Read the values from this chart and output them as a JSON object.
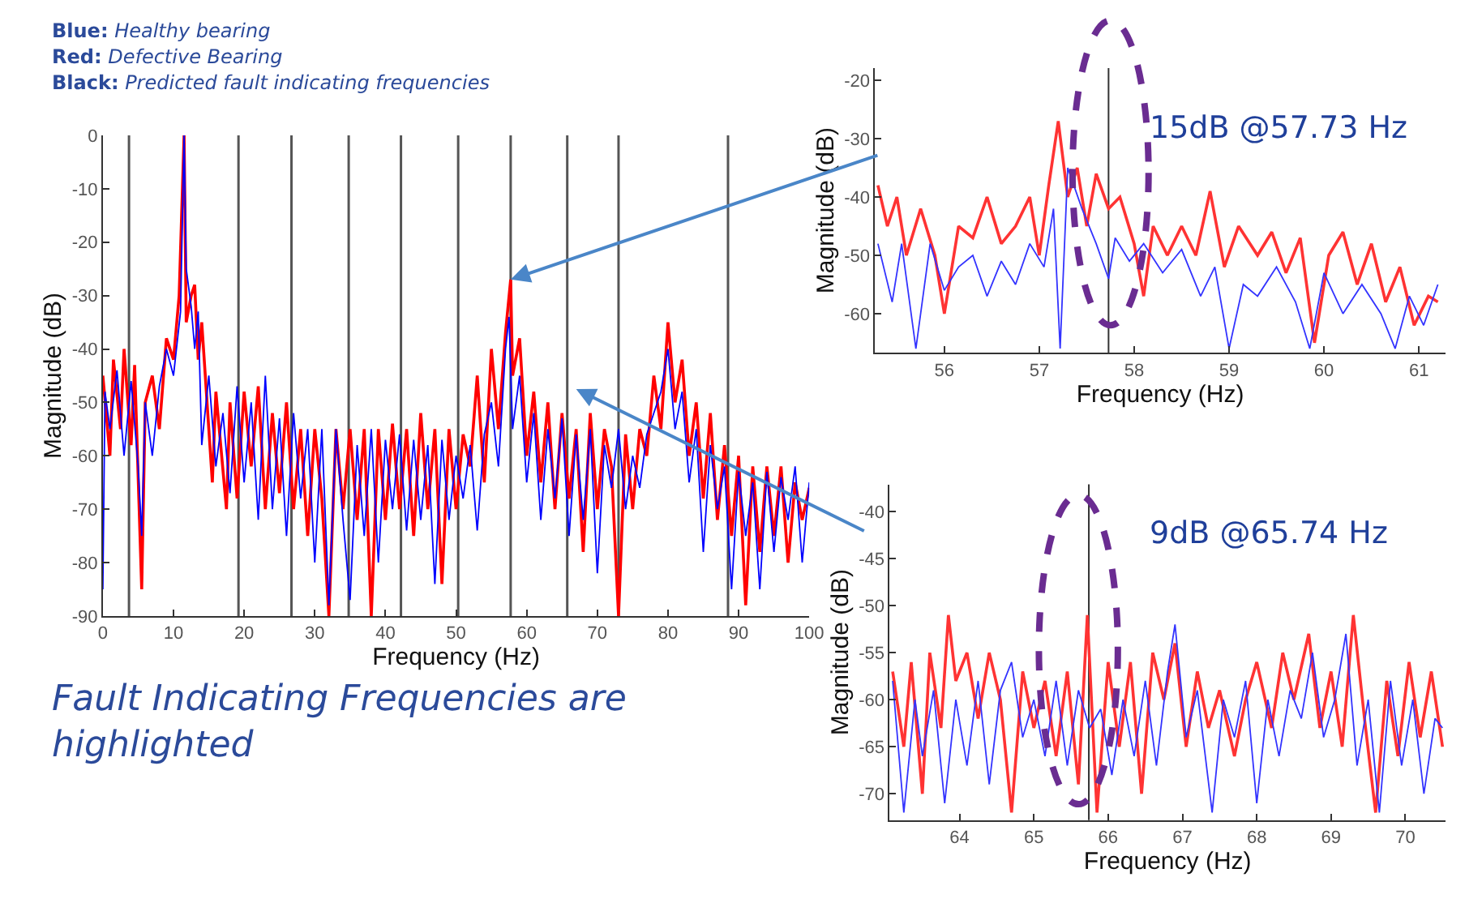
{
  "chart_data": [
    {
      "type": "line",
      "xlabel": "Frequency (Hz)",
      "ylabel": "Magnitude (dB)",
      "xlim": [
        0,
        100
      ],
      "ylim": [
        -90,
        0
      ],
      "xticks": [
        0,
        10,
        20,
        30,
        40,
        50,
        60,
        70,
        80,
        90,
        100
      ],
      "yticks": [
        -90,
        -80,
        -70,
        -60,
        -50,
        -40,
        -30,
        -20,
        -10,
        0
      ],
      "annotations": [
        "Blue: Healthy bearing",
        "Red: Defective Bearing",
        "Black: Predicted fault indicating frequencies",
        "Fault Indicating Frequencies are highlighted"
      ],
      "ref_lines": [
        {
          "axis": "x",
          "value": 3.7,
          "color": "#555555"
        },
        {
          "axis": "x",
          "value": 19.2,
          "color": "#555555"
        },
        {
          "axis": "x",
          "value": 26.7,
          "color": "#555555"
        },
        {
          "axis": "x",
          "value": 34.8,
          "color": "#555555"
        },
        {
          "axis": "x",
          "value": 42.2,
          "color": "#555555"
        },
        {
          "axis": "x",
          "value": 50.3,
          "color": "#555555"
        },
        {
          "axis": "x",
          "value": 57.73,
          "color": "#555555"
        },
        {
          "axis": "x",
          "value": 65.74,
          "color": "#555555"
        },
        {
          "axis": "x",
          "value": 73.0,
          "color": "#555555"
        },
        {
          "axis": "x",
          "value": 88.5,
          "color": "#555555"
        }
      ],
      "series": [
        {
          "color": "#ff0000",
          "x": [
            0,
            1,
            1.5,
            2.5,
            3,
            4,
            4.5,
            5.5,
            6,
            7,
            8,
            9,
            10,
            10.8,
            11.5,
            11.8,
            12.5,
            13,
            13.5,
            14,
            15,
            15.5,
            16,
            17.5,
            18,
            19,
            20,
            21,
            22,
            23,
            24,
            25,
            26,
            27,
            28,
            29,
            30,
            31,
            32,
            33,
            34,
            35,
            36,
            37,
            38,
            39,
            40,
            41,
            42,
            43,
            44,
            45,
            46,
            47,
            48,
            49,
            50,
            51,
            52,
            53,
            54,
            55,
            56,
            57,
            57.73,
            58,
            59,
            60,
            61,
            62,
            63,
            64,
            65,
            66,
            67,
            68,
            69,
            70,
            71,
            72,
            73,
            74,
            75,
            76,
            77,
            78,
            79,
            80,
            81,
            82,
            83,
            84,
            85,
            86,
            87,
            88,
            89,
            90,
            91,
            92,
            93,
            94,
            95,
            96,
            97,
            98,
            99,
            100
          ],
          "values": [
            -45,
            -60,
            -42,
            -55,
            -40,
            -58,
            -43,
            -85,
            -50,
            -45,
            -55,
            -38,
            -42,
            -30,
            0,
            -35,
            -30,
            -28,
            -42,
            -35,
            -55,
            -65,
            -48,
            -70,
            -50,
            -68,
            -48,
            -62,
            -47,
            -70,
            -52,
            -67,
            -50,
            -70,
            -55,
            -75,
            -55,
            -68,
            -90,
            -55,
            -70,
            -55,
            -72,
            -55,
            -90,
            -55,
            -72,
            -54,
            -70,
            -55,
            -75,
            -52,
            -70,
            -55,
            -84,
            -55,
            -70,
            -56,
            -62,
            -45,
            -65,
            -40,
            -55,
            -37,
            -27,
            -45,
            -38,
            -60,
            -48,
            -65,
            -50,
            -70,
            -52,
            -68,
            -55,
            -78,
            -52,
            -70,
            -55,
            -62,
            -90,
            -56,
            -70,
            -55,
            -60,
            -45,
            -55,
            -35,
            -50,
            -42,
            -60,
            -50,
            -68,
            -52,
            -72,
            -58,
            -75,
            -60,
            -88,
            -62,
            -78,
            -62,
            -75,
            -62,
            -80,
            -65,
            -72,
            -66
          ]
        },
        {
          "color": "#0000ff",
          "x": [
            0,
            0.3,
            1,
            2,
            3,
            4,
            5,
            5.5,
            6,
            7,
            8,
            9,
            10,
            11,
            11.5,
            11.8,
            12.5,
            13,
            13.5,
            14,
            15,
            16,
            17,
            18,
            19,
            20,
            21,
            22,
            23,
            24,
            25,
            26,
            27,
            28,
            29,
            30,
            31,
            32,
            33,
            34,
            35,
            36,
            37,
            38,
            39,
            40,
            41,
            42,
            43,
            44,
            45,
            46,
            47,
            48,
            49,
            50,
            51,
            52,
            53,
            54,
            55,
            56,
            57,
            57.5,
            58,
            59,
            60,
            61,
            62,
            63,
            64,
            65,
            66,
            67,
            68,
            69,
            70,
            71,
            72,
            73,
            74,
            75,
            76,
            77,
            78,
            79,
            80,
            81,
            82,
            83,
            84,
            85,
            86,
            87,
            88,
            89,
            90,
            91,
            92,
            93,
            94,
            95,
            96,
            97,
            98,
            99,
            100
          ],
          "values": [
            -85,
            -48,
            -55,
            -44,
            -60,
            -46,
            -62,
            -75,
            -50,
            -60,
            -47,
            -40,
            -45,
            -33,
            0,
            -25,
            -32,
            -40,
            -33,
            -58,
            -45,
            -62,
            -52,
            -67,
            -47,
            -65,
            -50,
            -72,
            -45,
            -70,
            -53,
            -75,
            -52,
            -68,
            -55,
            -80,
            -55,
            -88,
            -55,
            -72,
            -87,
            -58,
            -75,
            -55,
            -80,
            -57,
            -70,
            -56,
            -74,
            -57,
            -72,
            -58,
            -84,
            -57,
            -72,
            -60,
            -68,
            -58,
            -74,
            -56,
            -50,
            -62,
            -40,
            -34,
            -55,
            -45,
            -65,
            -52,
            -72,
            -55,
            -68,
            -53,
            -75,
            -56,
            -72,
            -55,
            -82,
            -58,
            -66,
            -55,
            -70,
            -60,
            -66,
            -56,
            -52,
            -48,
            -40,
            -55,
            -48,
            -65,
            -55,
            -78,
            -58,
            -70,
            -62,
            -85,
            -63,
            -75,
            -65,
            -85,
            -63,
            -78,
            -64,
            -72,
            -62,
            -80,
            -65
          ]
        }
      ]
    },
    {
      "type": "line",
      "xlabel": "Frequency (Hz)",
      "ylabel": "Magnitude (dB)",
      "xlim": [
        55.27,
        61.28
      ],
      "ylim": [
        -66.7,
        -17.9
      ],
      "xticks": [
        56,
        57,
        58,
        59,
        60,
        61
      ],
      "yticks": [
        -60,
        -50,
        -40,
        -30,
        -20
      ],
      "annotations": [
        "15dB @57.73 Hz"
      ],
      "ref_lines": [
        {
          "axis": "x",
          "value": 57.73,
          "color": "#333333"
        }
      ],
      "series": [
        {
          "color": "#ff3333",
          "x": [
            55.3,
            55.4,
            55.5,
            55.6,
            55.75,
            55.9,
            56.0,
            56.15,
            56.3,
            56.45,
            56.6,
            56.75,
            56.9,
            57.0,
            57.1,
            57.2,
            57.3,
            57.4,
            57.5,
            57.6,
            57.73,
            57.85,
            58.0,
            58.1,
            58.2,
            58.35,
            58.5,
            58.65,
            58.8,
            58.95,
            59.1,
            59.3,
            59.45,
            59.6,
            59.75,
            59.9,
            60.05,
            60.2,
            60.35,
            60.5,
            60.65,
            60.8,
            60.95,
            61.1,
            61.2
          ],
          "values": [
            -38,
            -45,
            -40,
            -50,
            -42,
            -50,
            -60,
            -45,
            -47,
            -40,
            -48,
            -45,
            -40,
            -50,
            -38,
            -27,
            -40,
            -35,
            -45,
            -36,
            -42,
            -40,
            -48,
            -57,
            -45,
            -50,
            -45,
            -50,
            -39,
            -52,
            -45,
            -50,
            -46,
            -53,
            -47,
            -65,
            -50,
            -46,
            -55,
            -48,
            -58,
            -52,
            -62,
            -57,
            -58
          ]
        },
        {
          "color": "#3333ff",
          "x": [
            55.3,
            55.45,
            55.55,
            55.7,
            55.85,
            56.0,
            56.15,
            56.3,
            56.45,
            56.6,
            56.75,
            56.9,
            57.05,
            57.15,
            57.22,
            57.3,
            57.45,
            57.6,
            57.73,
            57.8,
            57.95,
            58.1,
            58.3,
            58.5,
            58.7,
            58.85,
            59.0,
            59.15,
            59.3,
            59.5,
            59.7,
            59.85,
            60.0,
            60.2,
            60.4,
            60.6,
            60.75,
            60.9,
            61.05,
            61.2
          ],
          "values": [
            -48,
            -58,
            -48,
            -66,
            -48,
            -56,
            -52,
            -50,
            -57,
            -51,
            -55,
            -48,
            -52,
            -42,
            -66,
            -35,
            -42,
            -48,
            -54,
            -47,
            -51,
            -48,
            -53,
            -49,
            -57,
            -52,
            -66,
            -55,
            -57,
            -52,
            -58,
            -66,
            -53,
            -60,
            -55,
            -60,
            -66,
            -57,
            -62,
            -55
          ]
        }
      ]
    },
    {
      "type": "line",
      "xlabel": "Frequency (Hz)",
      "ylabel": "Magnitude (dB)",
      "xlim": [
        63.06,
        70.54
      ],
      "ylim": [
        -72.8,
        -37.1
      ],
      "xticks": [
        64,
        65,
        66,
        67,
        68,
        69,
        70
      ],
      "yticks": [
        -70,
        -65,
        -60,
        -55,
        -50,
        -45,
        -40
      ],
      "annotations": [
        "9dB @65.74 Hz"
      ],
      "ref_lines": [
        {
          "axis": "x",
          "value": 65.74,
          "color": "#333333"
        }
      ],
      "series": [
        {
          "color": "#ff3333",
          "x": [
            63.1,
            63.25,
            63.35,
            63.5,
            63.6,
            63.75,
            63.85,
            63.95,
            64.1,
            64.25,
            64.4,
            64.55,
            64.7,
            64.85,
            65.0,
            65.15,
            65.3,
            65.45,
            65.6,
            65.72,
            65.85,
            66.0,
            66.15,
            66.3,
            66.45,
            66.6,
            66.75,
            66.9,
            67.05,
            67.2,
            67.35,
            67.5,
            67.7,
            67.85,
            68.0,
            68.2,
            68.35,
            68.5,
            68.7,
            68.85,
            69.0,
            69.15,
            69.3,
            69.45,
            69.6,
            69.75,
            69.9,
            70.05,
            70.2,
            70.35,
            70.5
          ],
          "values": [
            -57,
            -65,
            -56,
            -70,
            -55,
            -63,
            -51,
            -58,
            -55,
            -62,
            -55,
            -60,
            -72,
            -57,
            -63,
            -58,
            -66,
            -57,
            -69,
            -51,
            -72,
            -56,
            -65,
            -56,
            -70,
            -55,
            -60,
            -54,
            -65,
            -57,
            -63,
            -59,
            -66,
            -60,
            -56,
            -63,
            -55,
            -60,
            -53,
            -63,
            -57,
            -65,
            -51,
            -62,
            -72,
            -58,
            -66,
            -56,
            -64,
            -57,
            -65
          ]
        },
        {
          "color": "#3333ff",
          "x": [
            63.1,
            63.25,
            63.4,
            63.5,
            63.65,
            63.8,
            63.95,
            64.1,
            64.25,
            64.4,
            64.55,
            64.7,
            64.85,
            65.0,
            65.15,
            65.3,
            65.45,
            65.6,
            65.75,
            65.9,
            66.05,
            66.2,
            66.35,
            66.5,
            66.65,
            66.8,
            66.9,
            67.05,
            67.2,
            67.4,
            67.55,
            67.7,
            67.85,
            68.0,
            68.15,
            68.3,
            68.45,
            68.6,
            68.75,
            68.9,
            69.05,
            69.2,
            69.35,
            69.5,
            69.65,
            69.8,
            69.95,
            70.1,
            70.25,
            70.4,
            70.5
          ],
          "values": [
            -58,
            -72,
            -60,
            -66,
            -59,
            -71,
            -60,
            -67,
            -58,
            -69,
            -59,
            -56,
            -64,
            -60,
            -66,
            -58,
            -67,
            -59,
            -63,
            -61,
            -68,
            -60,
            -66,
            -58,
            -67,
            -57,
            -52,
            -64,
            -59,
            -72,
            -60,
            -64,
            -58,
            -71,
            -60,
            -66,
            -59,
            -62,
            -55,
            -64,
            -60,
            -53,
            -67,
            -60,
            -72,
            -58,
            -67,
            -60,
            -70,
            -62,
            -63
          ]
        }
      ]
    }
  ]
}
